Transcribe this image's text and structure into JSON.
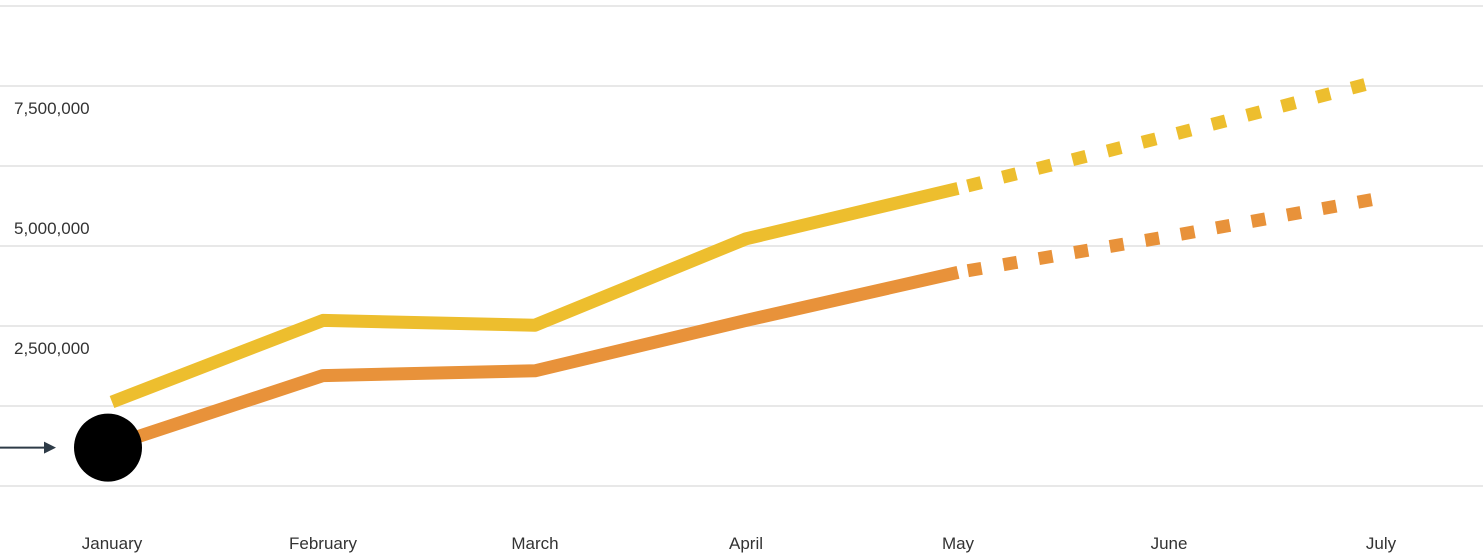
{
  "chart_data": {
    "type": "line",
    "categories": [
      "January",
      "February",
      "March",
      "April",
      "May",
      "June",
      "July"
    ],
    "y_ticks": [
      2500000,
      5000000,
      7500000
    ],
    "y_tick_labels": [
      "2,500,000",
      "5,000,000",
      "7,500,000"
    ],
    "ylim": [
      0,
      9000000
    ],
    "grid": true,
    "legend": "none",
    "series": [
      {
        "color": "#EDBE2E",
        "values": [
          1750000,
          3450000,
          3350000,
          5150000,
          6200000,
          null,
          null
        ],
        "projected_values": [
          null,
          null,
          null,
          null,
          6200000,
          7300000,
          8450000
        ]
      },
      {
        "color": "#E8923A",
        "values": [
          850000,
          2300000,
          2400000,
          3450000,
          4450000,
          null,
          null
        ],
        "projected_values": [
          null,
          null,
          null,
          null,
          4450000,
          5200000,
          6000000
        ]
      }
    ],
    "marker": {
      "category": "January",
      "value": 800000,
      "color": "#000000"
    },
    "arrow_color": "#2E3B47"
  }
}
